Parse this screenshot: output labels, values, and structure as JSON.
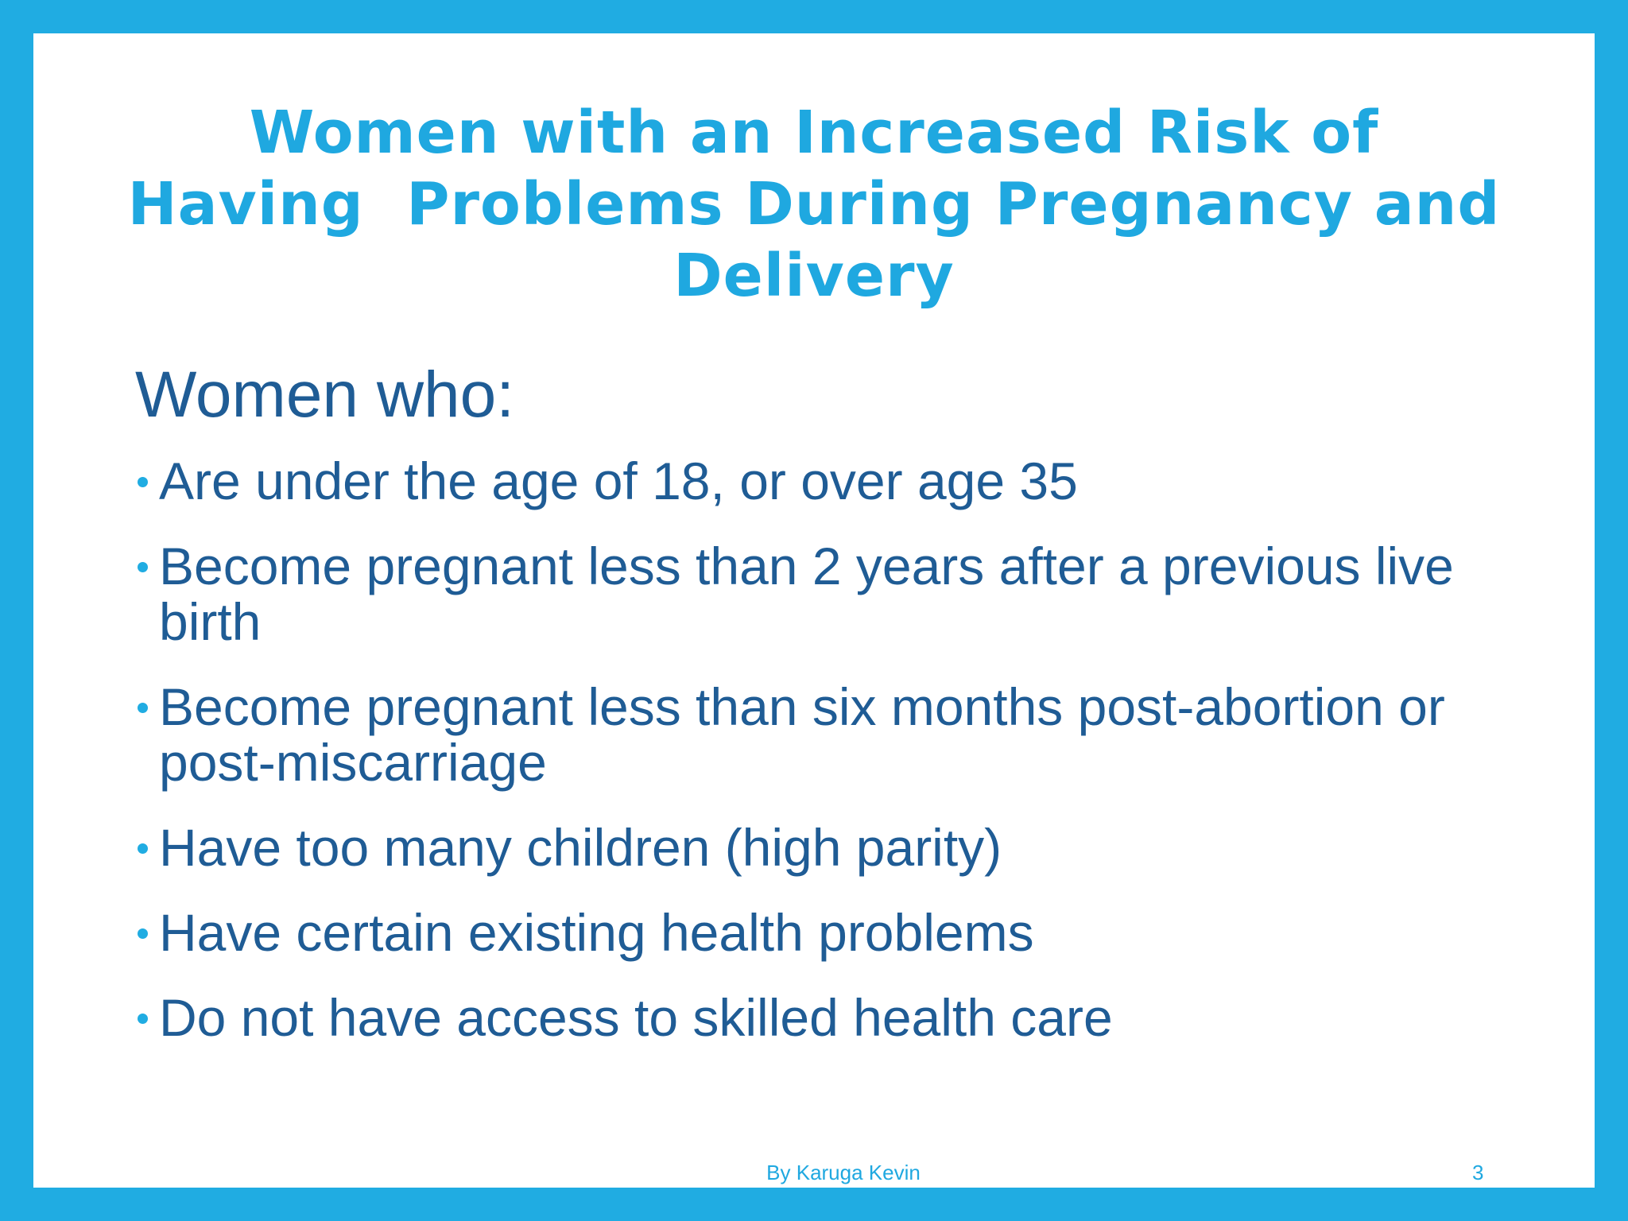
{
  "slide": {
    "title_lines": [
      "Women with an Increased Risk of",
      "Having  Problems During Pregnancy and",
      "Delivery"
    ],
    "subtitle": "Women who:",
    "bullets": [
      "Are under the age of 18, or over age 35",
      "Become pregnant less than 2 years after a previous live birth",
      "Become pregnant less than six months post-abortion or post-miscarriage",
      "Have too many children (high parity)",
      "Have certain existing health problems",
      "Do not have access to skilled health care"
    ],
    "footer_author": "By Karuga Kevin",
    "page_number": "3"
  },
  "colors": {
    "border": "#20ACE2",
    "title": "#1FA8E0",
    "body_text": "#1F5C95",
    "bullet": "#20ACE2",
    "background": "#FFFFFF"
  }
}
